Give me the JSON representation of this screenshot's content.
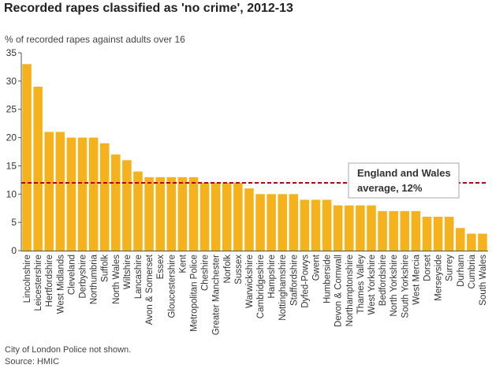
{
  "title": "Recorded rapes classified as 'no crime', 2012-13",
  "subtitle": "% of recorded rapes against adults over 16",
  "footnote": "City of London Police not shown.",
  "source": "Source: HMIC",
  "colors": {
    "bar": "#F5B21C",
    "average_line": "#C00000",
    "axis": "#555555",
    "text": "#333333"
  },
  "chart_data": {
    "type": "bar",
    "title": "Recorded rapes classified as 'no crime', 2012-13",
    "ylabel": "% of recorded rapes against adults over 16",
    "ylim": [
      0,
      35
    ],
    "yticks": [
      0,
      5,
      10,
      15,
      20,
      25,
      30,
      35
    ],
    "grid": false,
    "categories": [
      "Lincolnshire",
      "Leicestershire",
      "Hertfordshire",
      "West Midlands",
      "Cleveland",
      "Derbyshire",
      "Northumbria",
      "Suffolk",
      "North Wales",
      "Wiltshire",
      "Lancashire",
      "Avon & Somerset",
      "Essex",
      "Gloucestershire",
      "Kent",
      "Metropolitan Police",
      "Cheshire",
      "Greater Manchester",
      "Norfolk",
      "Sussex",
      "Warwickshire",
      "Cambridgeshire",
      "Hampshire",
      "Nottinghamshire",
      "Staffordshire",
      "Dyfed-Powys",
      "Gwent",
      "Humberside",
      "Devon & Cornwall",
      "Northamptonshire",
      "Thames Valley",
      "West Yorkshire",
      "Bedfordshire",
      "North Yorkshire",
      "South Yorkshire",
      "West Mercia",
      "Dorset",
      "Merseyside",
      "Surrey",
      "Durham",
      "Cumbria",
      "South Wales"
    ],
    "values": [
      33,
      29,
      21,
      21,
      20,
      20,
      20,
      19,
      17,
      16,
      14,
      13,
      13,
      13,
      13,
      13,
      12,
      12,
      12,
      12,
      11,
      10,
      10,
      10,
      10,
      9,
      9,
      9,
      8,
      8,
      8,
      8,
      7,
      7,
      7,
      7,
      6,
      6,
      6,
      4,
      3,
      3
    ],
    "average": {
      "value": 12,
      "label_line1": "England and Wales",
      "label_line2": "average, 12%"
    }
  }
}
